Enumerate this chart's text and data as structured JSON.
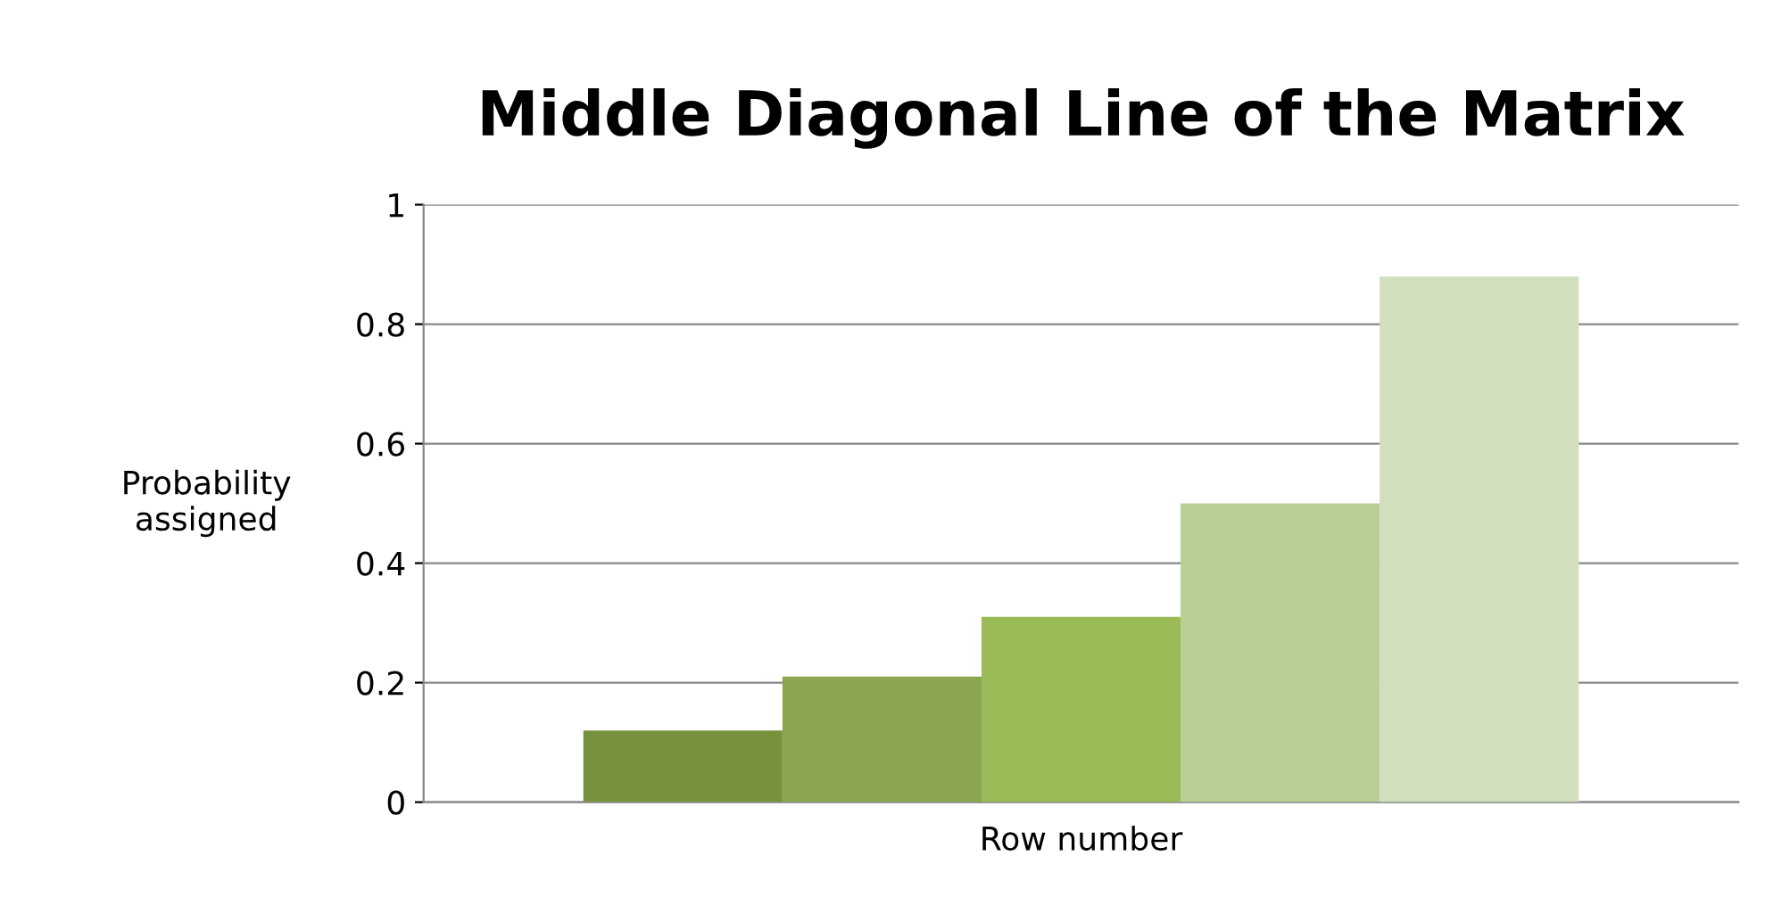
{
  "chart_data": {
    "type": "bar",
    "title": "Middle Diagonal Line of the Matrix",
    "xlabel": "Row number",
    "ylabel": "Probability\nassigned",
    "categories": [
      null
    ],
    "series": [
      {
        "color": "#76923c",
        "values": [
          0.12
        ]
      },
      {
        "color": "#8aa650",
        "values": [
          0.21
        ]
      },
      {
        "color": "#9bbb59",
        "values": [
          0.31
        ]
      },
      {
        "color": "#b9cf93",
        "values": [
          0.5
        ]
      },
      {
        "color": "#d2dfbd",
        "values": [
          0.88
        ]
      }
    ],
    "ylim": [
      0,
      1
    ],
    "yticks": [
      0,
      0.2,
      0.4,
      0.6,
      0.8,
      1
    ],
    "grid": "y",
    "legend": false
  }
}
